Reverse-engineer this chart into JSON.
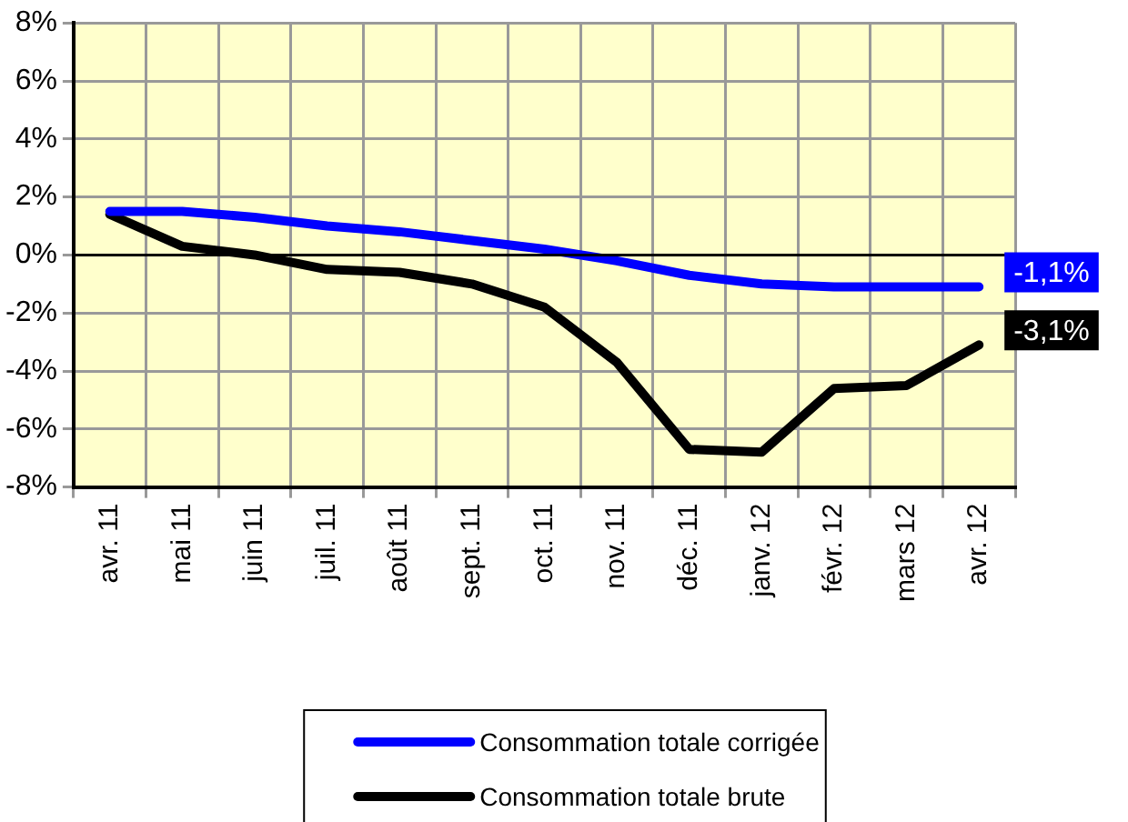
{
  "chart_data": {
    "type": "line",
    "categories": [
      "avr. 11",
      "mai 11",
      "juin 11",
      "juil. 11",
      "août 11",
      "sept. 11",
      "oct. 11",
      "nov. 11",
      "déc. 11",
      "janv. 12",
      "févr. 12",
      "mars 12",
      "avr. 12"
    ],
    "series": [
      {
        "name": "Consommation totale corrigée",
        "color": "#0000ff",
        "values": [
          1.5,
          1.5,
          1.3,
          1.0,
          0.8,
          0.5,
          0.2,
          -0.2,
          -0.7,
          -1.0,
          -1.1,
          -1.1,
          -1.1
        ],
        "value_labels": [
          null,
          null,
          null,
          null,
          null,
          null,
          null,
          null,
          null,
          null,
          null,
          null,
          "-1,1%"
        ]
      },
      {
        "name": "Consommation totale brute",
        "color": "#000000",
        "values": [
          1.4,
          0.3,
          0.0,
          -0.5,
          -0.6,
          -1.0,
          -1.8,
          -3.7,
          -6.7,
          -6.8,
          -4.6,
          -4.5,
          -3.1
        ],
        "value_labels": [
          null,
          null,
          null,
          null,
          null,
          null,
          null,
          null,
          null,
          null,
          null,
          null,
          "-3,1%"
        ]
      }
    ],
    "ylim": [
      -8,
      8
    ],
    "yticks": [
      {
        "value": -8,
        "label": "-8%"
      },
      {
        "value": -6,
        "label": "-6%"
      },
      {
        "value": -4,
        "label": "-4%"
      },
      {
        "value": -2,
        "label": "-2%"
      },
      {
        "value": 0,
        "label": "0%"
      },
      {
        "value": 2,
        "label": "2%"
      },
      {
        "value": 4,
        "label": "4%"
      },
      {
        "value": 6,
        "label": "6%"
      },
      {
        "value": 8,
        "label": "8%"
      }
    ],
    "ref_lines": [
      {
        "axis": "y",
        "value": 0,
        "color": "#000000"
      }
    ],
    "grid": true,
    "legend": "bottom",
    "marker": "none",
    "line_style": "solid"
  }
}
